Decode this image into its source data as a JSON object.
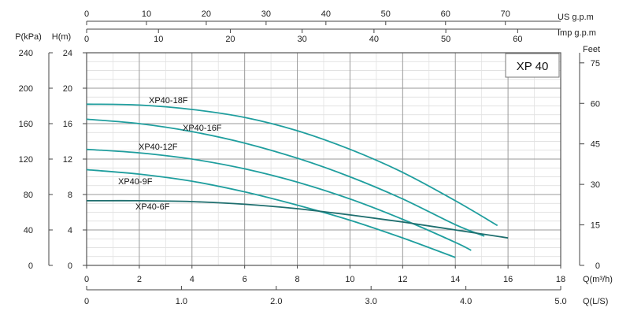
{
  "chart_data": {
    "type": "line",
    "title": "XP 40",
    "xlabel": "Q(m³/h)",
    "ylabel": "H(m)",
    "xlim": [
      0,
      18
    ],
    "ylim": [
      0,
      24
    ],
    "grid": true,
    "axes": {
      "left_outer": {
        "label": "P(kPa)",
        "ticks": [
          "0",
          "40",
          "80",
          "120",
          "160",
          "200",
          "240"
        ]
      },
      "left_inner": {
        "label": "H(m)",
        "ticks": [
          "0",
          "4",
          "8",
          "12",
          "16",
          "20",
          "24"
        ]
      },
      "right": {
        "label": "Feet",
        "ticks": [
          "0",
          "15",
          "30",
          "45",
          "60",
          "75"
        ]
      },
      "bottom": {
        "label": "Q(m³/h)",
        "ticks": [
          "0",
          "2",
          "4",
          "6",
          "8",
          "10",
          "12",
          "14",
          "16",
          "18"
        ]
      },
      "bottom2": {
        "label": "Q(L/S)",
        "ticks": [
          "0",
          "1.0",
          "2.0",
          "3.0",
          "4.0",
          "5.0"
        ]
      },
      "top1": {
        "label": "US  g.p.m",
        "ticks": [
          "0",
          "10",
          "20",
          "30",
          "40",
          "50",
          "60",
          "70"
        ]
      },
      "top2": {
        "label": "Imp  g.p.m",
        "ticks": [
          "0",
          "10",
          "20",
          "30",
          "40",
          "50",
          "60"
        ]
      }
    },
    "series": [
      {
        "name": "XP40-18F",
        "color": "#1f9e9e",
        "points": [
          [
            0,
            18.2
          ],
          [
            2,
            18.1
          ],
          [
            4,
            17.6
          ],
          [
            6,
            16.7
          ],
          [
            8,
            15.2
          ],
          [
            10,
            13.1
          ],
          [
            12,
            10.5
          ],
          [
            14,
            7.3
          ],
          [
            15.6,
            4.5
          ]
        ]
      },
      {
        "name": "XP40-16F",
        "color": "#1f9e9e",
        "points": [
          [
            0,
            16.5
          ],
          [
            2,
            16.0
          ],
          [
            4,
            15.1
          ],
          [
            6,
            13.8
          ],
          [
            8,
            12.1
          ],
          [
            10,
            10.0
          ],
          [
            12,
            7.5
          ],
          [
            14,
            4.6
          ],
          [
            15.1,
            3.3
          ]
        ]
      },
      {
        "name": "XP40-12F",
        "color": "#1f9e9e",
        "points": [
          [
            0,
            13.1
          ],
          [
            2,
            12.7
          ],
          [
            4,
            12.0
          ],
          [
            6,
            10.9
          ],
          [
            8,
            9.4
          ],
          [
            10,
            7.5
          ],
          [
            12,
            5.2
          ],
          [
            14,
            2.6
          ],
          [
            14.6,
            1.7
          ]
        ]
      },
      {
        "name": "XP40-9F",
        "color": "#1f9e9e",
        "points": [
          [
            0,
            10.8
          ],
          [
            2,
            10.3
          ],
          [
            4,
            9.5
          ],
          [
            6,
            8.3
          ],
          [
            8,
            6.8
          ],
          [
            10,
            5.1
          ],
          [
            12,
            3.1
          ],
          [
            14,
            0.9
          ]
        ]
      },
      {
        "name": "XP40-6F",
        "color": "#1e6e6e",
        "points": [
          [
            0,
            7.3
          ],
          [
            2,
            7.3
          ],
          [
            4,
            7.2
          ],
          [
            6,
            6.9
          ],
          [
            8,
            6.4
          ],
          [
            10,
            5.7
          ],
          [
            12,
            4.9
          ],
          [
            14,
            4.0
          ],
          [
            16,
            3.1
          ]
        ]
      }
    ]
  }
}
